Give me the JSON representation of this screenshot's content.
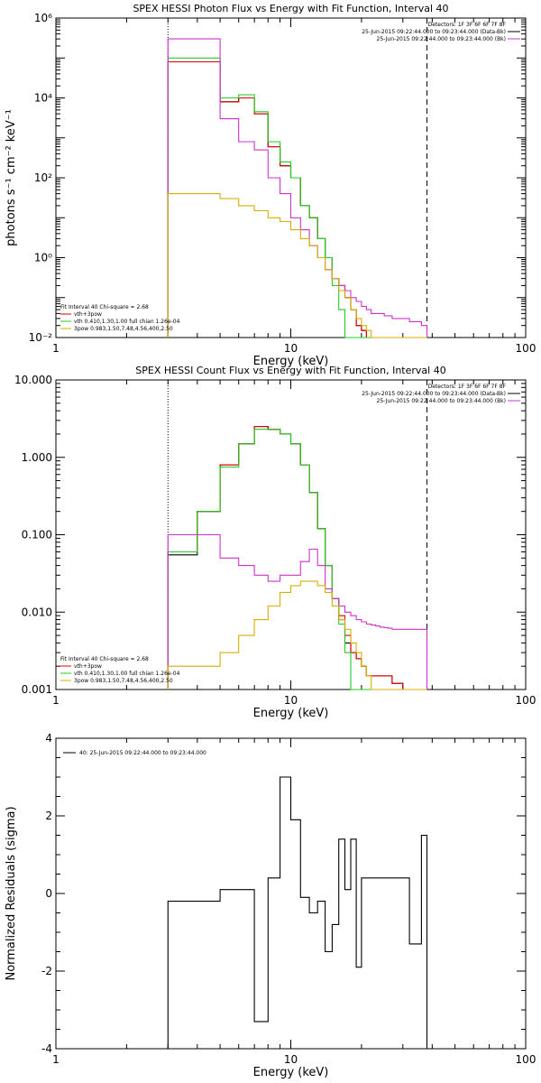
{
  "colors": {
    "black": "#000000",
    "red": "#e00000",
    "magenta": "#cc33cc",
    "green": "#22cc22",
    "yellow": "#d4b000"
  },
  "chart_data": [
    {
      "type": "line",
      "title": "SPEX HESSI Photon Flux vs Energy with Fit Function, Interval 40",
      "xlabel": "Energy (keV)",
      "ylabel": "photons s⁻¹ cm⁻² keV⁻¹",
      "xscale": "log",
      "yscale": "log",
      "xlim": [
        1,
        100
      ],
      "ylim": [
        0.01,
        1000000
      ],
      "xticks": [
        {
          "v": 1,
          "label": "1"
        },
        {
          "v": 10,
          "label": "10"
        },
        {
          "v": 100,
          "label": "100"
        }
      ],
      "yticks": [
        {
          "v": 0.01,
          "label": "10⁻²"
        },
        {
          "v": 1,
          "label": "10⁰"
        },
        {
          "v": 100,
          "label": "10²"
        },
        {
          "v": 10000,
          "label": "10⁴"
        },
        {
          "v": 1000000,
          "label": "10⁶"
        }
      ],
      "vlines": [
        {
          "x": 3.0,
          "style": "dotted"
        },
        {
          "x": 38,
          "style": "dashed"
        }
      ],
      "edges": [
        3,
        4,
        5,
        6,
        7,
        8,
        9,
        10,
        11,
        12,
        13,
        14,
        15,
        16,
        17,
        18,
        19,
        20,
        21,
        22,
        23,
        24,
        25,
        26,
        27,
        28,
        30,
        32,
        34,
        36,
        38
      ],
      "legend_top": [
        {
          "text": "Detectors: 1F 3F 6F 6F 7F 8F",
          "color": "#000000",
          "line": false
        },
        {
          "text": "25-Jun-2015 09:22:44.000 to 09:23:44.000 (Data-Bk)",
          "color": "#000000",
          "line": true
        },
        {
          "text": "25-Jun-2015 09:22:44.000 to 09:23:44.000 (Bk)",
          "color": "#cc33cc",
          "line": true
        }
      ],
      "legend_bottom": [
        {
          "text": "Fit Interval 40    Chi-square = 2.68",
          "color": "#000000",
          "line": false
        },
        {
          "text": "vth+3pow",
          "color": "#e00000",
          "line": true
        },
        {
          "text": "vth 0.410,1.30,1.00  full chian 1.26e-04",
          "color": "#22cc22",
          "line": true
        },
        {
          "text": "3pow 0.983,1.50,7.48,4.56,400,2.50",
          "color": "#d4b000",
          "line": true
        }
      ],
      "series": [
        {
          "color_key": "black",
          "values": [
            80000,
            80000,
            8000,
            10000,
            4000,
            600,
            200,
            100,
            20,
            10,
            3,
            1,
            0.3,
            0.2,
            0.1,
            0.05,
            0.02,
            0.015,
            0.01,
            0.01,
            0.01,
            0.01,
            0.01,
            0.01,
            0.01,
            0.01,
            0.01,
            0.01,
            0.01,
            0.01
          ]
        },
        {
          "color_key": "red",
          "values": [
            80000,
            80000,
            8000,
            10000,
            4000,
            600,
            200,
            100,
            20,
            10,
            3,
            1,
            0.3,
            0.2,
            0.1,
            0.05,
            0.02,
            0.015,
            0.01,
            0.01,
            0.01,
            0.01,
            0.01,
            0.01,
            0.01,
            0.01,
            0.01,
            0.01,
            0.01,
            0.01
          ]
        },
        {
          "color_key": "green",
          "values": [
            100000,
            100000,
            10000,
            12000,
            4500,
            800,
            250,
            100,
            20,
            10,
            3,
            1,
            0.2,
            0.05,
            0.01,
            0.01,
            0.01,
            0.01,
            0.01,
            0.01,
            0.01,
            0.01,
            0.01,
            0.01,
            0.01,
            0.01,
            0.01,
            0.01,
            0.01,
            0.01
          ]
        },
        {
          "color_key": "magenta",
          "values": [
            300000,
            300000,
            3000,
            800,
            500,
            100,
            40,
            10,
            5,
            2,
            1,
            0.5,
            0.3,
            0.2,
            0.15,
            0.1,
            0.08,
            0.06,
            0.05,
            0.04,
            0.04,
            0.04,
            0.035,
            0.035,
            0.03,
            0.03,
            0.03,
            0.025,
            0.025,
            0.02
          ]
        },
        {
          "color_key": "yellow",
          "values": [
            40,
            40,
            30,
            20,
            15,
            10,
            8,
            5,
            3,
            2,
            1,
            0.5,
            0.3,
            0.15,
            0.1,
            0.05,
            0.03,
            0.02,
            0.015,
            0.01,
            0.01,
            0.01,
            0.01,
            0.01,
            0.01,
            0.01,
            0.01,
            0.01,
            0.01,
            0.01
          ]
        }
      ]
    },
    {
      "type": "line",
      "title": "SPEX HESSI Count Flux vs Energy with Fit Function, Interval 40",
      "xlabel": "Energy (keV)",
      "ylabel": "",
      "xscale": "log",
      "yscale": "log",
      "xlim": [
        1,
        100
      ],
      "ylim": [
        0.001,
        10
      ],
      "xticks": [
        {
          "v": 1,
          "label": "1"
        },
        {
          "v": 10,
          "label": "10"
        },
        {
          "v": 100,
          "label": "100"
        }
      ],
      "yticks": [
        {
          "v": 0.001,
          "label": "0.001"
        },
        {
          "v": 0.01,
          "label": "0.010"
        },
        {
          "v": 0.1,
          "label": "0.100"
        },
        {
          "v": 1,
          "label": "1.000"
        },
        {
          "v": 10,
          "label": "10.000"
        }
      ],
      "vlines": [
        {
          "x": 3.0,
          "style": "dotted"
        },
        {
          "x": 38,
          "style": "dashed"
        }
      ],
      "edges": [
        3,
        4,
        5,
        6,
        7,
        8,
        9,
        10,
        11,
        12,
        13,
        14,
        15,
        16,
        17,
        18,
        19,
        20,
        21,
        22,
        23,
        24,
        25,
        26,
        27,
        28,
        30,
        32,
        34,
        36,
        38
      ],
      "legend_top": [
        {
          "text": "Detectors: 1F 3F 6F 6F 7F 8F",
          "color": "#000000",
          "line": false
        },
        {
          "text": "25-Jun-2015 09:22:44.000 to 09:23:44.000 (Data-Bk)",
          "color": "#000000",
          "line": true
        },
        {
          "text": "25-Jun-2015 09:22:44.000 to 09:23:44.000 (Bk)",
          "color": "#cc33cc",
          "line": true
        }
      ],
      "legend_bottom": [
        {
          "text": "Fit Interval 40    Chi-square = 2.68",
          "color": "#000000",
          "line": false
        },
        {
          "text": "vth+3pow",
          "color": "#e00000",
          "line": true
        },
        {
          "text": "vth 0.410,1.30,1.00  full chian 1.26e-04",
          "color": "#22cc22",
          "line": true
        },
        {
          "text": "3pow 0.983,1.50,7.48,4.56,400,2.50",
          "color": "#d4b000",
          "line": true
        }
      ],
      "series": [
        {
          "color_key": "black",
          "values": [
            0.055,
            0.2,
            0.8,
            1.5,
            2.5,
            2.3,
            2.0,
            1.5,
            0.8,
            0.35,
            0.12,
            0.04,
            0.015,
            0.008,
            0.004,
            0.003,
            0.0025,
            0.002,
            0.0015,
            0.0015,
            0.0015,
            0.0015,
            0.0015,
            0.0015,
            0.0012,
            0.0012,
            0.001,
            0.001,
            0.001,
            0.001
          ]
        },
        {
          "color_key": "red",
          "values": [
            0.06,
            0.2,
            0.8,
            1.5,
            2.5,
            2.3,
            2.0,
            1.5,
            0.8,
            0.35,
            0.12,
            0.04,
            0.015,
            0.009,
            0.005,
            0.003,
            0.0025,
            0.002,
            0.0015,
            0.0015,
            0.0015,
            0.0015,
            0.0015,
            0.0015,
            0.0012,
            0.0012,
            0.001,
            0.001,
            0.001,
            0.001
          ]
        },
        {
          "color_key": "green",
          "values": [
            0.06,
            0.2,
            0.75,
            1.5,
            2.3,
            2.3,
            2.0,
            1.5,
            0.8,
            0.35,
            0.12,
            0.04,
            0.015,
            0.007,
            0.003,
            0.001,
            0.001,
            0.001,
            0.001,
            0.001,
            0.001,
            0.001,
            0.001,
            0.001,
            0.001,
            0.001,
            0.001,
            0.001,
            0.001,
            0.001
          ]
        },
        {
          "color_key": "magenta",
          "values": [
            0.1,
            0.1,
            0.05,
            0.04,
            0.03,
            0.025,
            0.03,
            0.03,
            0.045,
            0.065,
            0.04,
            0.02,
            0.015,
            0.012,
            0.01,
            0.009,
            0.008,
            0.0075,
            0.007,
            0.0068,
            0.0066,
            0.0064,
            0.0063,
            0.0062,
            0.006,
            0.006,
            0.006,
            0.006,
            0.006,
            0.006
          ]
        },
        {
          "color_key": "yellow",
          "values": [
            0.002,
            0.002,
            0.003,
            0.005,
            0.008,
            0.012,
            0.018,
            0.022,
            0.025,
            0.025,
            0.022,
            0.018,
            0.012,
            0.008,
            0.006,
            0.004,
            0.003,
            0.002,
            0.0015,
            0.001,
            0.001,
            0.001,
            0.001,
            0.001,
            0.001,
            0.001,
            0.001,
            0.001,
            0.001,
            0.001
          ]
        }
      ]
    },
    {
      "type": "line",
      "title": "",
      "xlabel": "Energy (keV)",
      "ylabel": "Normalized Residuals (sigma)",
      "xscale": "log",
      "yscale": "linear",
      "xlim": [
        1,
        100
      ],
      "ylim": [
        -4,
        4
      ],
      "xticks": [
        {
          "v": 1,
          "label": "1"
        },
        {
          "v": 10,
          "label": "10"
        },
        {
          "v": 100,
          "label": "100"
        }
      ],
      "yticks": [
        {
          "v": -4,
          "label": "-4"
        },
        {
          "v": -2,
          "label": "-2"
        },
        {
          "v": 0,
          "label": "0"
        },
        {
          "v": 2,
          "label": "2"
        },
        {
          "v": 4,
          "label": "4"
        }
      ],
      "vlines": [],
      "edges": [
        3,
        4,
        5,
        6,
        7,
        8,
        9,
        10,
        11,
        12,
        13,
        14,
        15,
        16,
        17,
        18,
        19,
        20,
        21,
        22,
        23,
        24,
        25,
        26,
        27,
        28,
        30,
        32,
        34,
        36,
        38
      ],
      "legend_top": [
        {
          "text": "40: 25-Jun-2015 09:22:44.000 to 09:23:44.000",
          "color": "#000000",
          "line": true
        }
      ],
      "legend_bottom": [],
      "series": [
        {
          "color_key": "black",
          "values": [
            -0.2,
            -0.2,
            0.1,
            0.1,
            -3.3,
            0.4,
            3.0,
            1.9,
            -0.1,
            -0.5,
            -0.2,
            -1.5,
            -0.8,
            1.4,
            0.1,
            1.4,
            -1.9,
            0.4,
            0.4,
            0.4,
            0.4,
            0.4,
            0.4,
            0.4,
            0.4,
            0.4,
            0.4,
            -1.3,
            -1.3,
            1.5
          ]
        }
      ]
    }
  ]
}
